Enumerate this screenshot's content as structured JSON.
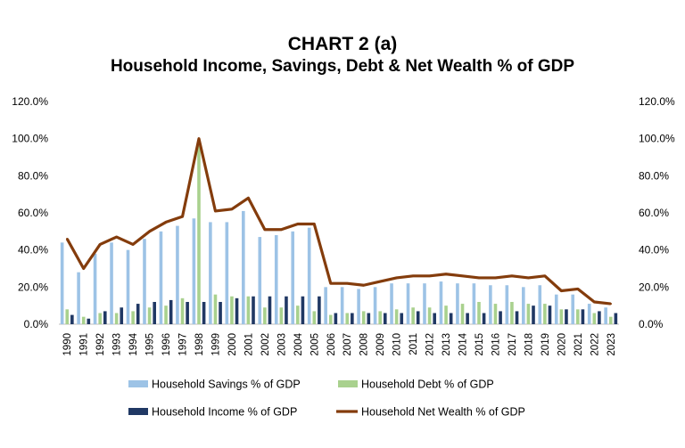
{
  "chart_data": {
    "type": "bar",
    "title": "CHART 2 (a)",
    "subtitle": "Household Income, Savings, Debt & Net Wealth % of GDP",
    "categories": [
      "1990",
      "1991",
      "1992",
      "1993",
      "1994",
      "1995",
      "1996",
      "1997",
      "1998",
      "1999",
      "2000",
      "2001",
      "2002",
      "2003",
      "2004",
      "2005",
      "2006",
      "2007",
      "2008",
      "2009",
      "2010",
      "2011",
      "2012",
      "2013",
      "2014",
      "2015",
      "2016",
      "2017",
      "2018",
      "2019",
      "2020",
      "2021",
      "2022",
      "2023"
    ],
    "ylim": [
      0,
      120
    ],
    "y_ticks": [
      "0.0%",
      "20.0%",
      "40.0%",
      "60.0%",
      "80.0%",
      "100.0%",
      "120.0%"
    ],
    "secondary_ylim": [
      0,
      120
    ],
    "grid": false,
    "legend_position": "bottom",
    "series": [
      {
        "name": "Household Savings % of GDP",
        "kind": "bar",
        "color": "#9dc3e6",
        "values": [
          44,
          28,
          38,
          44,
          40,
          46,
          50,
          53,
          57,
          55,
          55,
          61,
          47,
          48,
          50,
          52,
          20,
          20,
          19,
          20,
          22,
          22,
          22,
          23,
          22,
          22,
          21,
          21,
          20,
          21,
          16,
          16,
          11,
          9
        ]
      },
      {
        "name": "Household Debt % of GDP",
        "kind": "bar",
        "color": "#a9d18e",
        "values": [
          8,
          4,
          6,
          6,
          7,
          9,
          10,
          14,
          96,
          16,
          15,
          15,
          9,
          9,
          10,
          7,
          5,
          6,
          7,
          7,
          8,
          9,
          9,
          10,
          11,
          12,
          11,
          12,
          11,
          11,
          8,
          8,
          6,
          4
        ]
      },
      {
        "name": "Household Income % of GDP",
        "kind": "bar",
        "color": "#203864",
        "values": [
          5,
          3,
          7,
          9,
          11,
          12,
          13,
          12,
          12,
          12,
          14,
          15,
          15,
          15,
          15,
          15,
          6,
          6,
          6,
          6,
          6,
          7,
          6,
          6,
          6,
          6,
          7,
          7,
          10,
          10,
          8,
          8,
          7,
          6
        ]
      },
      {
        "name": "Household Net Wealth % of GDP",
        "kind": "line",
        "color": "#843c0c",
        "values": [
          46,
          30,
          43,
          47,
          43,
          50,
          55,
          58,
          100,
          61,
          62,
          68,
          51,
          51,
          54,
          54,
          22,
          22,
          21,
          23,
          25,
          26,
          26,
          27,
          26,
          25,
          25,
          26,
          25,
          26,
          18,
          19,
          12,
          11
        ]
      }
    ]
  }
}
